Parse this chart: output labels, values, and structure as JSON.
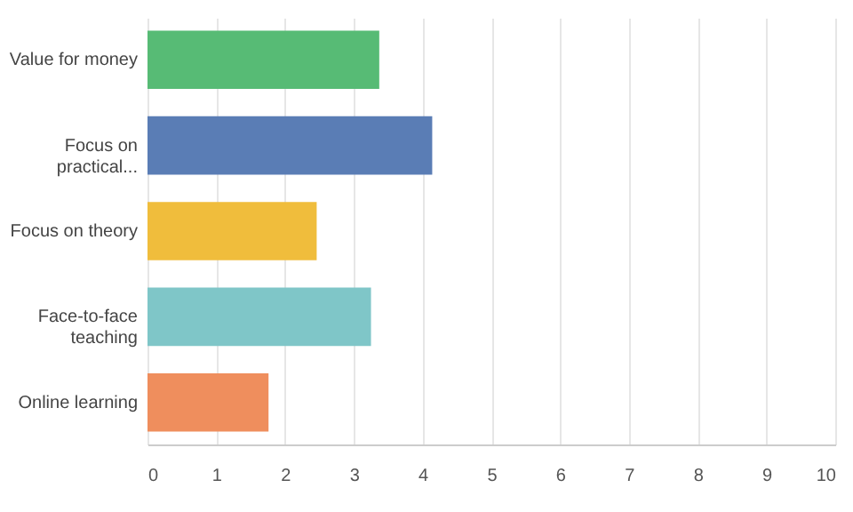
{
  "chart_data": {
    "type": "bar",
    "orientation": "horizontal",
    "categories": [
      "Value for money",
      "Focus on practical...",
      "Focus on theory",
      "Face-to-face teaching",
      "Online learning"
    ],
    "values": [
      3.37,
      4.14,
      2.46,
      3.25,
      1.76
    ],
    "colors": [
      "#57bb75",
      "#5a7db5",
      "#f0bd3c",
      "#7fc6c8",
      "#ef8e5d"
    ],
    "xlim": [
      0,
      10
    ],
    "xticks": [
      0,
      1,
      2,
      3,
      4,
      5,
      6,
      7,
      8,
      9,
      10
    ],
    "grid": "x"
  }
}
